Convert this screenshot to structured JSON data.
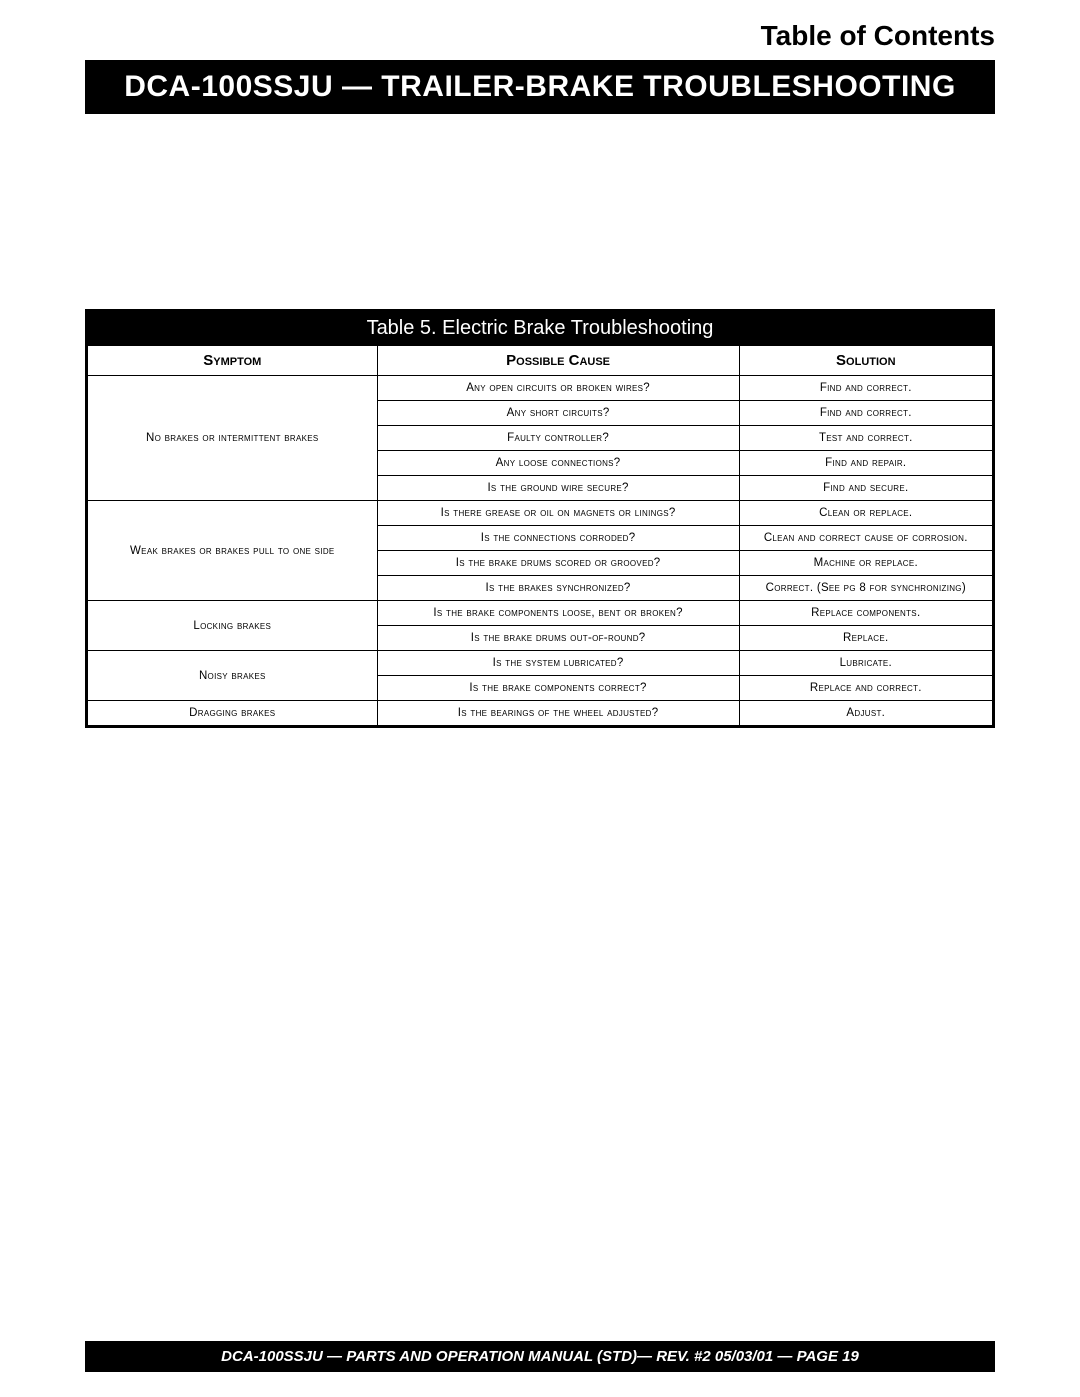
{
  "toc_label": "Table of Contents",
  "title": "DCA-100SSJU  — TRAILER-BRAKE TROUBLESHOOTING",
  "table": {
    "caption": "Table 5. Electric Brake Troubleshooting",
    "headers": {
      "symptom": "Symptom",
      "cause": "Possible Cause",
      "solution": "Solution"
    },
    "groups": [
      {
        "symptom": "No brakes or intermittent brakes",
        "rows": [
          {
            "cause": "Any open circuits or broken wires?",
            "solution": "Find and correct."
          },
          {
            "cause": "Any short circuits?",
            "solution": "Find and correct."
          },
          {
            "cause": "Faulty controller?",
            "solution": "Test and correct."
          },
          {
            "cause": "Any loose connections?",
            "solution": "Find and repair."
          },
          {
            "cause": "Is the ground wire secure?",
            "solution": "Find and secure."
          }
        ]
      },
      {
        "symptom": "Weak brakes or brakes pull to one side",
        "rows": [
          {
            "cause": "Is there grease or oil on magnets or linings?",
            "solution": "Clean or replace."
          },
          {
            "cause": "Is the connections corroded?",
            "solution": "Clean and correct cause of corrosion."
          },
          {
            "cause": "Is the brake drums scored or grooved?",
            "solution": "Machine or replace."
          },
          {
            "cause": "Is the brakes synchronized?",
            "solution": "Correct. (See pg 8 for synchronizing)"
          }
        ]
      },
      {
        "symptom": "Locking brakes",
        "rows": [
          {
            "cause": "Is the brake components loose, bent or broken?",
            "solution": "Replace components."
          },
          {
            "cause": "Is the brake drums out-of-round?",
            "solution": "Replace."
          }
        ]
      },
      {
        "symptom": "Noisy brakes",
        "rows": [
          {
            "cause": "Is the system lubricated?",
            "solution": "Lubricate."
          },
          {
            "cause": "Is the brake components correct?",
            "solution": "Replace and correct."
          }
        ]
      },
      {
        "symptom": "Dragging brakes",
        "rows": [
          {
            "cause": "Is the bearings of the wheel adjusted?",
            "solution": "Adjust."
          }
        ]
      }
    ]
  },
  "footer": "DCA-100SSJU — PARTS AND OPERATION  MANUAL (STD)— REV. #2  05/03/01 — PAGE 19",
  "colors": {
    "black": "#000000",
    "white": "#ffffff"
  }
}
